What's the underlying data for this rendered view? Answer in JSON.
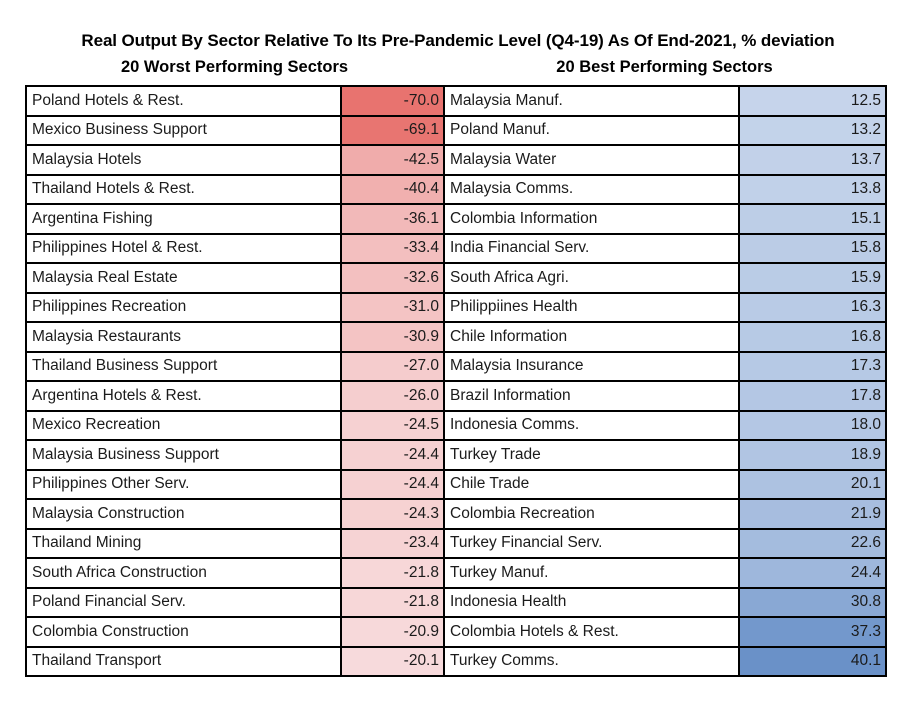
{
  "page": {
    "title": "Real Output By Sector Relative To Its Pre-Pandemic Level (Q4-19) As Of End-2021, % deviation",
    "left_header": "20 Worst Performing Sectors",
    "right_header": "20 Best Performing Sectors"
  },
  "chart_data": {
    "type": "table",
    "title": "Real Output By Sector Relative To Its Pre-Pandemic Level (Q4-19) As Of End-2021, % deviation",
    "columns": [
      "20 Worst Performing Sectors",
      "20 Best Performing Sectors"
    ],
    "unit": "% deviation",
    "color_scale": {
      "negative_anchor": "#E8736F",
      "midpoint": "#FCFCFF",
      "positive_anchor": "#6A91C8",
      "domain": [
        -70.0,
        -3.8,
        40.1
      ]
    },
    "worst": [
      {
        "sector": "Poland Hotels & Rest.",
        "value": -70.0,
        "color": "#E8736F"
      },
      {
        "sector": "Mexico Business Support",
        "value": -69.1,
        "color": "#E87571"
      },
      {
        "sector": "Malaysia Hotels",
        "value": -42.5,
        "color": "#F0ACAB"
      },
      {
        "sector": "Thailand Hotels & Rest.",
        "value": -40.4,
        "color": "#F1B0AF"
      },
      {
        "sector": "Argentina Fishing",
        "value": -36.1,
        "color": "#F2B9B9"
      },
      {
        "sector": "Philippines Hotel & Rest.",
        "value": -33.4,
        "color": "#F3BFBF"
      },
      {
        "sector": "Malaysia Real Estate",
        "value": -32.6,
        "color": "#F3C0C0"
      },
      {
        "sector": "Philippines Recreation",
        "value": -31.0,
        "color": "#F4C4C4"
      },
      {
        "sector": "Malaysia Restaurants",
        "value": -30.9,
        "color": "#F4C4C4"
      },
      {
        "sector": "Thailand Business Support",
        "value": -27.0,
        "color": "#F5CCCD"
      },
      {
        "sector": "Argentina Hotels & Rest.",
        "value": -26.0,
        "color": "#F5CECF"
      },
      {
        "sector": "Mexico Recreation",
        "value": -24.5,
        "color": "#F6D1D2"
      },
      {
        "sector": "Malaysia Business Support",
        "value": -24.4,
        "color": "#F6D1D2"
      },
      {
        "sector": "Philippines Other Serv.",
        "value": -24.4,
        "color": "#F6D1D2"
      },
      {
        "sector": "Malaysia Construction",
        "value": -24.3,
        "color": "#F6D2D2"
      },
      {
        "sector": "Thailand Mining",
        "value": -23.4,
        "color": "#F6D3D4"
      },
      {
        "sector": "South Africa Construction",
        "value": -21.8,
        "color": "#F7D7D8"
      },
      {
        "sector": "Poland Financial Serv.",
        "value": -21.8,
        "color": "#F7D7D8"
      },
      {
        "sector": "Colombia Construction",
        "value": -20.9,
        "color": "#F7D9DA"
      },
      {
        "sector": "Thailand Transport",
        "value": -20.1,
        "color": "#F7DADC"
      }
    ],
    "best": [
      {
        "sector": "Malaysia Manuf.",
        "value": 12.5,
        "color": "#C6D4EB"
      },
      {
        "sector": "Poland Manuf.",
        "value": 13.2,
        "color": "#C3D3EA"
      },
      {
        "sector": "Malaysia Water",
        "value": 13.7,
        "color": "#C2D1E9"
      },
      {
        "sector": "Malaysia Comms.",
        "value": 13.8,
        "color": "#C1D1E9"
      },
      {
        "sector": "Colombia Information",
        "value": 15.1,
        "color": "#BDCEE7"
      },
      {
        "sector": "India Financial Serv.",
        "value": 15.8,
        "color": "#BBCCE6"
      },
      {
        "sector": "South Africa Agri.",
        "value": 15.9,
        "color": "#BACCE6"
      },
      {
        "sector": "Philippiines Health",
        "value": 16.3,
        "color": "#B9CBE6"
      },
      {
        "sector": "Chile Information",
        "value": 16.8,
        "color": "#B7CAE5"
      },
      {
        "sector": "Malaysia Insurance",
        "value": 17.3,
        "color": "#B6C9E5"
      },
      {
        "sector": "Brazil Information",
        "value": 17.8,
        "color": "#B4C7E4"
      },
      {
        "sector": "Indonesia Comms.",
        "value": 18.0,
        "color": "#B4C7E4"
      },
      {
        "sector": "Turkey Trade",
        "value": 18.9,
        "color": "#B1C5E3"
      },
      {
        "sector": "Chile Trade",
        "value": 20.1,
        "color": "#ADC2E1"
      },
      {
        "sector": "Colombia Recreation",
        "value": 21.9,
        "color": "#A7BDDF"
      },
      {
        "sector": "Turkey Financial Serv.",
        "value": 22.6,
        "color": "#A4BCDE"
      },
      {
        "sector": "Turkey Manuf.",
        "value": 24.4,
        "color": "#9EB7DC"
      },
      {
        "sector": "Indonesia Health",
        "value": 30.8,
        "color": "#89A8D4"
      },
      {
        "sector": "Colombia Hotels & Rest.",
        "value": 37.3,
        "color": "#7398CC"
      },
      {
        "sector": "Turkey Comms.",
        "value": 40.1,
        "color": "#6A91C8"
      }
    ]
  }
}
